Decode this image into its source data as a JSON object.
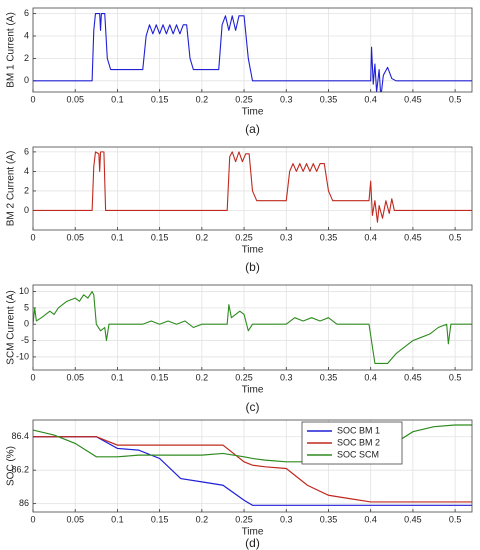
{
  "chart_data": [
    {
      "type": "line",
      "caption": "(a)",
      "xlabel": "Time",
      "ylabel": "BM 1 Current (A)",
      "color": "#1f1fd6",
      "grid": true,
      "xlim": [
        0,
        0.52
      ],
      "xticks": [
        0,
        0.05,
        0.1,
        0.15,
        0.2,
        0.25,
        0.3,
        0.35,
        0.4,
        0.45,
        0.5
      ],
      "ylim": [
        -1,
        6.5
      ],
      "yticks": [
        0,
        2,
        4,
        6
      ],
      "x": [
        0,
        0.07,
        0.072,
        0.074,
        0.079,
        0.08,
        0.081,
        0.085,
        0.088,
        0.092,
        0.13,
        0.134,
        0.138,
        0.142,
        0.146,
        0.15,
        0.154,
        0.158,
        0.162,
        0.166,
        0.17,
        0.174,
        0.178,
        0.182,
        0.186,
        0.19,
        0.22,
        0.224,
        0.228,
        0.232,
        0.236,
        0.24,
        0.244,
        0.25,
        0.255,
        0.26,
        0.4,
        0.401,
        0.403,
        0.405,
        0.407,
        0.41,
        0.412,
        0.415,
        0.42,
        0.425,
        0.43,
        0.52
      ],
      "values": [
        0,
        0,
        4.5,
        6,
        6,
        4.5,
        6,
        6,
        2,
        1,
        1,
        4,
        5,
        4.2,
        5,
        4.2,
        5,
        4.2,
        5,
        4.2,
        5,
        4.2,
        5,
        5,
        2,
        1,
        1,
        5,
        5.8,
        4.5,
        5.8,
        4.5,
        5.8,
        5.8,
        2,
        0,
        0,
        3,
        -0.3,
        1.5,
        -1,
        1,
        -1.5,
        0.5,
        1.2,
        0.2,
        0,
        0
      ]
    },
    {
      "type": "line",
      "caption": "(b)",
      "xlabel": "Time",
      "ylabel": "BM 2 Current (A)",
      "color": "#c0291e",
      "grid": true,
      "xlim": [
        0,
        0.52
      ],
      "xticks": [
        0,
        0.05,
        0.1,
        0.15,
        0.2,
        0.25,
        0.3,
        0.35,
        0.4,
        0.45,
        0.5
      ],
      "ylim": [
        -2,
        6.5
      ],
      "yticks": [
        0,
        2,
        4,
        6
      ],
      "x": [
        0,
        0.07,
        0.072,
        0.074,
        0.078,
        0.079,
        0.08,
        0.084,
        0.086,
        0.23,
        0.233,
        0.236,
        0.24,
        0.244,
        0.248,
        0.252,
        0.256,
        0.26,
        0.265,
        0.3,
        0.304,
        0.308,
        0.312,
        0.316,
        0.32,
        0.324,
        0.328,
        0.332,
        0.336,
        0.34,
        0.345,
        0.35,
        0.355,
        0.398,
        0.4,
        0.402,
        0.405,
        0.408,
        0.41,
        0.414,
        0.418,
        0.422,
        0.425,
        0.428,
        0.52
      ],
      "values": [
        0,
        0,
        4.5,
        6,
        5.8,
        4,
        6,
        6,
        0,
        0,
        5.5,
        6,
        5,
        6,
        5,
        5.8,
        5.8,
        2,
        1,
        1,
        4,
        4.8,
        4,
        4.8,
        4,
        4.8,
        4,
        4.8,
        4,
        4.8,
        4.8,
        2,
        1,
        1,
        3,
        -0.5,
        1,
        -1.2,
        0.5,
        -0.8,
        1,
        -0.3,
        1.2,
        0,
        0
      ]
    },
    {
      "type": "line",
      "caption": "(c)",
      "xlabel": "Time",
      "ylabel": "SCM Current (A)",
      "color": "#2e8b1f",
      "grid": true,
      "xlim": [
        0,
        0.52
      ],
      "xticks": [
        0,
        0.05,
        0.1,
        0.15,
        0.2,
        0.25,
        0.3,
        0.35,
        0.4,
        0.45,
        0.5
      ],
      "ylim": [
        -14,
        12
      ],
      "yticks": [
        -10,
        -5,
        0,
        5,
        10
      ],
      "x": [
        0,
        0.002,
        0.004,
        0.01,
        0.02,
        0.025,
        0.03,
        0.04,
        0.05,
        0.055,
        0.06,
        0.065,
        0.07,
        0.072,
        0.075,
        0.08,
        0.085,
        0.087,
        0.09,
        0.13,
        0.14,
        0.15,
        0.16,
        0.17,
        0.18,
        0.19,
        0.2,
        0.23,
        0.232,
        0.235,
        0.24,
        0.245,
        0.25,
        0.255,
        0.26,
        0.3,
        0.31,
        0.32,
        0.33,
        0.34,
        0.35,
        0.36,
        0.398,
        0.405,
        0.42,
        0.43,
        0.44,
        0.45,
        0.46,
        0.47,
        0.48,
        0.49,
        0.492,
        0.495,
        0.52
      ],
      "values": [
        0,
        5,
        1,
        2,
        4,
        3,
        5,
        7,
        8,
        7,
        9,
        8,
        10,
        9,
        0,
        -2,
        -1,
        -5,
        0,
        0,
        1,
        0,
        1,
        0,
        1,
        -1,
        0,
        0,
        6,
        2,
        3,
        4,
        3,
        -2,
        0,
        0,
        2,
        1,
        2,
        1,
        2,
        0,
        0,
        -12,
        -12,
        -9,
        -7,
        -5,
        -4,
        -3,
        -1,
        0,
        -6,
        0,
        0
      ]
    },
    {
      "type": "line",
      "caption": "(d)",
      "xlabel": "Time",
      "ylabel": "SOC (%)",
      "grid": true,
      "legend": "upper right",
      "xlim": [
        0,
        0.52
      ],
      "xticks": [
        0,
        0.05,
        0.1,
        0.15,
        0.2,
        0.25,
        0.3,
        0.35,
        0.4,
        0.45,
        0.5
      ],
      "ylim": [
        85.95,
        86.5
      ],
      "yticks": [
        86,
        86.2,
        86.4
      ],
      "x": [
        0,
        0.025,
        0.05,
        0.075,
        0.1,
        0.125,
        0.15,
        0.175,
        0.2,
        0.225,
        0.25,
        0.26,
        0.275,
        0.3,
        0.325,
        0.35,
        0.375,
        0.4,
        0.425,
        0.45,
        0.475,
        0.5,
        0.52
      ],
      "series": [
        {
          "name": "SOC BM 1",
          "color": "#1f1fd6",
          "values": [
            86.4,
            86.4,
            86.4,
            86.4,
            86.33,
            86.32,
            86.27,
            86.15,
            86.13,
            86.11,
            86.02,
            85.99,
            85.99,
            85.99,
            85.99,
            85.99,
            85.99,
            85.99,
            85.99,
            85.99,
            85.99,
            85.99,
            85.99
          ]
        },
        {
          "name": "SOC BM 2",
          "color": "#c0291e",
          "values": [
            86.4,
            86.4,
            86.4,
            86.4,
            86.35,
            86.35,
            86.35,
            86.35,
            86.35,
            86.35,
            86.25,
            86.23,
            86.22,
            86.21,
            86.11,
            86.05,
            86.03,
            86.01,
            86.01,
            86.01,
            86.01,
            86.01,
            86.01
          ]
        },
        {
          "name": "SOC SCM",
          "color": "#2e8b1f",
          "values": [
            86.44,
            86.41,
            86.36,
            86.28,
            86.28,
            86.29,
            86.29,
            86.29,
            86.29,
            86.3,
            86.28,
            86.27,
            86.26,
            86.25,
            86.25,
            86.24,
            86.24,
            86.24,
            86.35,
            86.43,
            86.46,
            86.47,
            86.47
          ]
        }
      ]
    }
  ]
}
